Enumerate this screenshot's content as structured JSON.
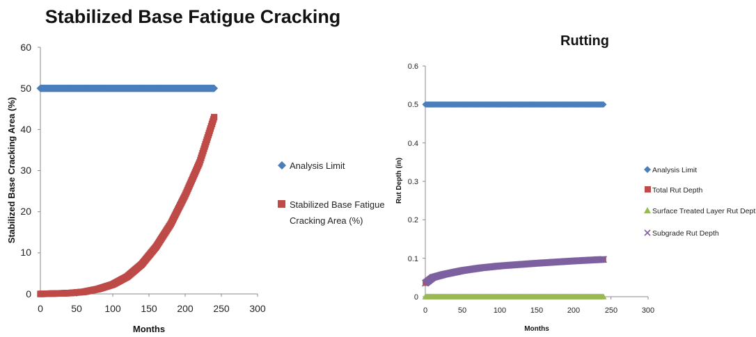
{
  "chart_data": [
    {
      "type": "scatter",
      "title": "Stabilized Base Fatigue Cracking",
      "xlabel": "Months",
      "ylabel": "Stabilized Base Cracking Area (%)",
      "xlim": [
        0,
        300
      ],
      "ylim": [
        0,
        60
      ],
      "x_ticks": [
        "0",
        "50",
        "100",
        "150",
        "200",
        "250",
        "300"
      ],
      "y_ticks": [
        "0",
        "10",
        "20",
        "30",
        "40",
        "50",
        "60"
      ],
      "grid": false,
      "legend_position": "right",
      "series": [
        {
          "name": "Analysis Limit",
          "marker": "diamond",
          "color": "#4a7ebb",
          "formula": "constant",
          "value": 50,
          "x_range": [
            0,
            240
          ]
        },
        {
          "name": "Stabilized Base Fatigue Cracking Area (%)",
          "marker": "square",
          "color": "#be4b48",
          "formula": "curve",
          "x_range": [
            0,
            240
          ],
          "points": [
            [
              0,
              0
            ],
            [
              20,
              0.1
            ],
            [
              40,
              0.2
            ],
            [
              60,
              0.5
            ],
            [
              80,
              1.2
            ],
            [
              100,
              2.3
            ],
            [
              120,
              4.2
            ],
            [
              140,
              7.2
            ],
            [
              160,
              11.5
            ],
            [
              180,
              17
            ],
            [
              200,
              24
            ],
            [
              220,
              32
            ],
            [
              240,
              43
            ]
          ]
        }
      ]
    },
    {
      "type": "scatter",
      "title": "Rutting",
      "xlabel": "Months",
      "ylabel": "Rut Depth (in)",
      "xlim": [
        0,
        300
      ],
      "ylim": [
        0,
        0.6
      ],
      "x_ticks": [
        "0",
        "50",
        "100",
        "150",
        "200",
        "250",
        "300"
      ],
      "y_ticks": [
        "0",
        "0.1",
        "0.2",
        "0.3",
        "0.4",
        "0.5",
        "0.6"
      ],
      "grid": false,
      "legend_position": "right",
      "series": [
        {
          "name": "Analysis Limit",
          "marker": "diamond",
          "color": "#4a7ebb",
          "formula": "constant",
          "value": 0.5,
          "x_range": [
            0,
            240
          ]
        },
        {
          "name": "Total Rut Depth",
          "marker": "square",
          "color": "#be4b48",
          "formula": "curve",
          "x_range": [
            0,
            240
          ],
          "points": [
            [
              0,
              0.035
            ],
            [
              10,
              0.05
            ],
            [
              25,
              0.058
            ],
            [
              50,
              0.068
            ],
            [
              75,
              0.075
            ],
            [
              100,
              0.08
            ],
            [
              150,
              0.087
            ],
            [
              200,
              0.093
            ],
            [
              240,
              0.097
            ]
          ]
        },
        {
          "name": "Surface Treated Layer Rut Depth",
          "marker": "triangle",
          "color": "#98b954",
          "formula": "constant",
          "value": 0,
          "x_range": [
            0,
            240
          ]
        },
        {
          "name": "Subgrade Rut Depth",
          "marker": "x",
          "color": "#7d60a0",
          "formula": "curve",
          "x_range": [
            0,
            240
          ],
          "points": [
            [
              0,
              0.035
            ],
            [
              10,
              0.05
            ],
            [
              25,
              0.058
            ],
            [
              50,
              0.068
            ],
            [
              75,
              0.075
            ],
            [
              100,
              0.08
            ],
            [
              150,
              0.087
            ],
            [
              200,
              0.093
            ],
            [
              240,
              0.097
            ]
          ]
        }
      ]
    }
  ]
}
